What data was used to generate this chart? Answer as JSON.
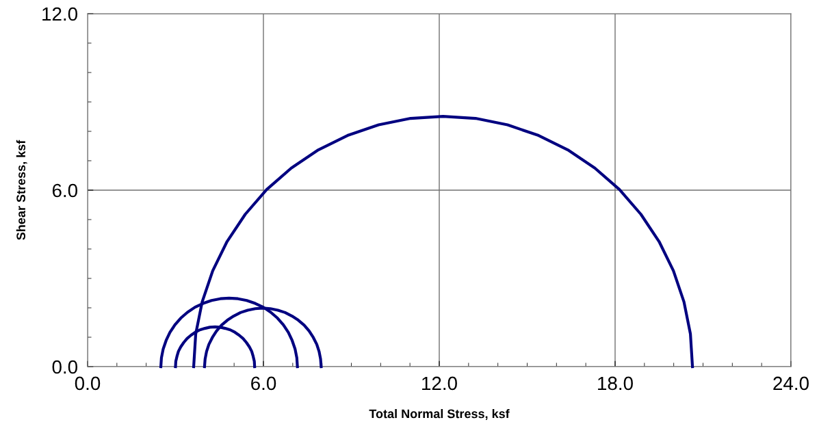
{
  "chart_data": {
    "type": "line",
    "xlabel": "Total Normal Stress, ksf",
    "ylabel": "Shear Stress, ksf",
    "xlim": [
      0,
      24
    ],
    "ylim": [
      0,
      12
    ],
    "xticks": [
      {
        "value": 0,
        "label": "0.0"
      },
      {
        "value": 6,
        "label": "6.0"
      },
      {
        "value": 12,
        "label": "12.0"
      },
      {
        "value": 18,
        "label": "18.0"
      },
      {
        "value": 24,
        "label": "24.0"
      }
    ],
    "yticks": [
      {
        "value": 0,
        "label": "0.0"
      },
      {
        "value": 6,
        "label": "6.0"
      },
      {
        "value": 12,
        "label": "12.0"
      }
    ],
    "grid": true,
    "marker": "none",
    "line_style": "solid",
    "series": [
      {
        "color": "#000080",
        "x": [
          3.62,
          3.69,
          3.91,
          4.27,
          4.76,
          5.38,
          6.11,
          6.95,
          7.875,
          8.87,
          9.93,
          11.02,
          12.13,
          13.24,
          14.33,
          15.39,
          16.385,
          17.31,
          18.15,
          18.88,
          19.5,
          19.99,
          20.35,
          20.57,
          20.64
        ],
        "values": [
          0,
          1.11,
          2.2,
          3.26,
          4.255,
          5.18,
          6.02,
          6.75,
          7.37,
          7.86,
          8.22,
          8.44,
          8.51,
          8.44,
          8.22,
          7.86,
          7.37,
          6.75,
          6.02,
          5.18,
          4.255,
          3.26,
          2.2,
          1.11,
          0
        ]
      },
      {
        "color": "#000080",
        "x": [
          2.5,
          2.52,
          2.58,
          2.68,
          2.81,
          2.98,
          3.18,
          3.41,
          3.665,
          3.94,
          4.23,
          4.53,
          4.83,
          5.13,
          5.43,
          5.72,
          5.995,
          6.25,
          6.48,
          6.68,
          6.85,
          6.98,
          7.08,
          7.14,
          7.16
        ],
        "values": [
          0,
          0.3,
          0.6,
          0.89,
          1.165,
          1.42,
          1.65,
          1.85,
          2.02,
          2.15,
          2.25,
          2.31,
          2.33,
          2.31,
          2.25,
          2.15,
          2.02,
          1.85,
          1.65,
          1.42,
          1.165,
          0.89,
          0.6,
          0.3,
          0
        ]
      },
      {
        "color": "#000080",
        "x": [
          3.0,
          3.01,
          3.05,
          3.1,
          3.18,
          3.28,
          3.395,
          3.53,
          3.675,
          3.83,
          4.0,
          4.17,
          4.35,
          4.53,
          4.7,
          4.87,
          5.025,
          5.17,
          5.305,
          5.42,
          5.52,
          5.6,
          5.65,
          5.69,
          5.7
        ],
        "values": [
          0,
          0.18,
          0.35,
          0.52,
          0.675,
          0.82,
          0.955,
          1.07,
          1.17,
          1.25,
          1.3,
          1.34,
          1.35,
          1.34,
          1.3,
          1.25,
          1.17,
          1.07,
          0.955,
          0.82,
          0.675,
          0.52,
          0.35,
          0.18,
          0
        ]
      },
      {
        "color": "#000080",
        "x": [
          3.99,
          4.01,
          4.06,
          4.14,
          4.26,
          4.4,
          4.57,
          4.77,
          4.985,
          5.22,
          5.465,
          5.72,
          5.98,
          6.24,
          6.495,
          6.74,
          6.975,
          7.19,
          7.39,
          7.56,
          7.7,
          7.82,
          7.9,
          7.95,
          7.97
        ],
        "values": [
          0,
          0.26,
          0.515,
          0.76,
          0.995,
          1.21,
          1.41,
          1.58,
          1.72,
          1.84,
          1.92,
          1.97,
          1.99,
          1.97,
          1.92,
          1.84,
          1.72,
          1.58,
          1.41,
          1.21,
          0.995,
          0.76,
          0.515,
          0.26,
          0
        ]
      }
    ]
  }
}
